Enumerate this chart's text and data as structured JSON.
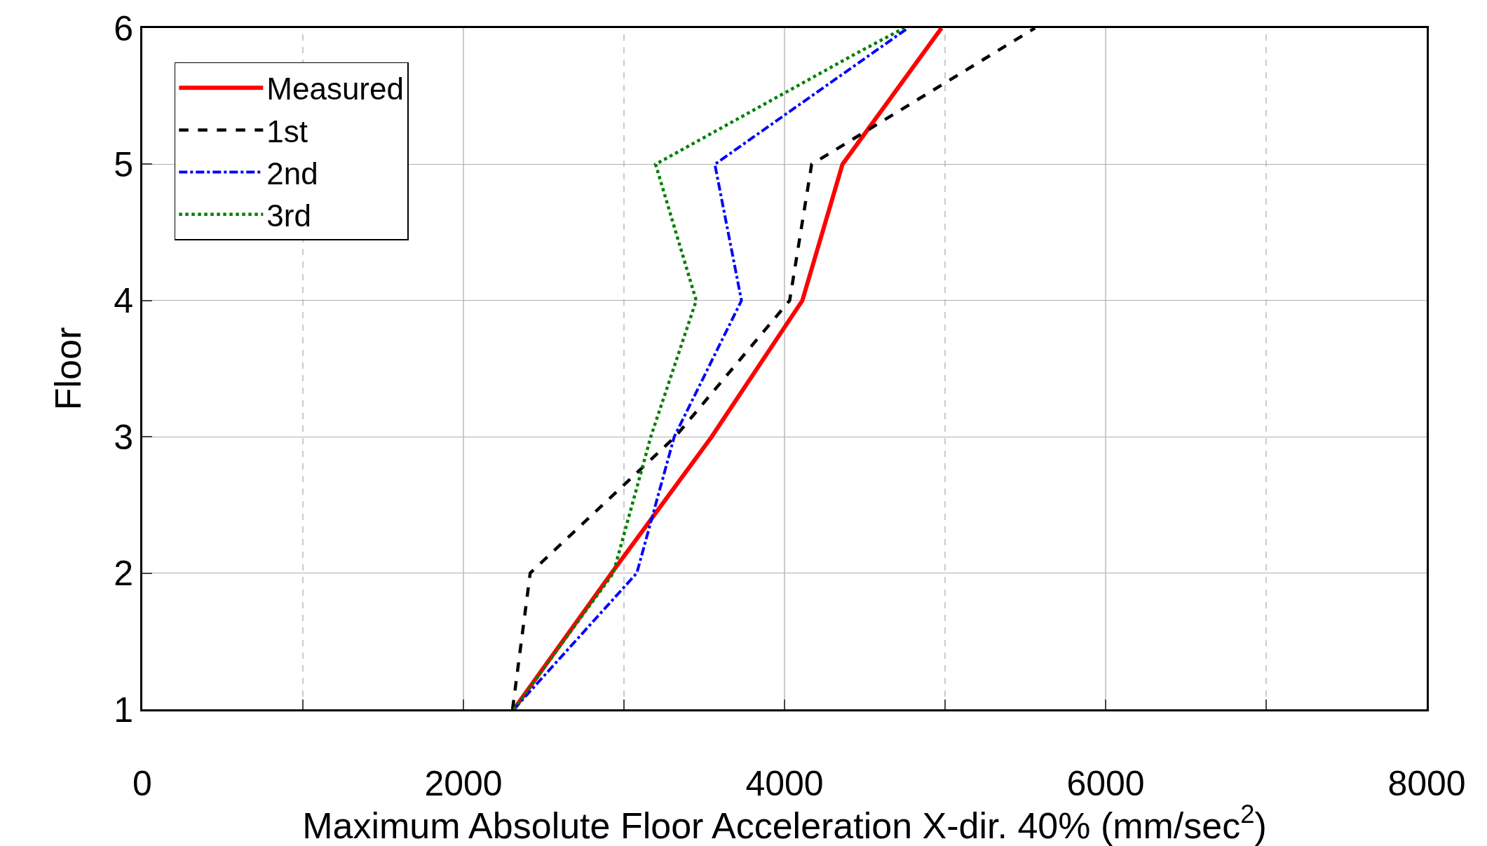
{
  "chart_data": {
    "type": "line",
    "xlabel": "Maximum Absolute Floor Acceleration X-dir. 40% (mm/sec$^{2}$)",
    "ylabel": "Floor",
    "xlim": [
      0,
      8000
    ],
    "xticks": [
      0,
      {
        "value": 1000,
        "label": null
      },
      2000,
      {
        "value": 3000,
        "label": null
      },
      4000,
      {
        "value": 5000,
        "label": null
      },
      6000,
      {
        "value": 7000,
        "label": null
      },
      8000
    ],
    "ylim": [
      1,
      6
    ],
    "yticks": [
      1,
      2,
      3,
      4,
      5,
      6
    ],
    "grid": true,
    "legend": "top left",
    "series": [
      {
        "name": "Measured",
        "color": "#ff0000",
        "line_style": "solid",
        "x": [
          2314,
          2923,
          3546,
          4111,
          4361,
          4978
        ],
        "values": [
          1,
          2,
          3,
          4,
          5,
          6
        ]
      },
      {
        "name": "1st",
        "color": "#000000",
        "line_style": "dashed",
        "x": [
          2306,
          2416,
          3319,
          4032,
          4169,
          5560
        ],
        "values": [
          1,
          2,
          3,
          4,
          5,
          6
        ]
      },
      {
        "name": "2nd",
        "color": "#0000ff",
        "line_style": "dashdot",
        "x": [
          2314,
          3080,
          3313,
          3732,
          3566,
          4769
        ],
        "values": [
          1,
          2,
          3,
          4,
          5,
          6
        ]
      },
      {
        "name": "3rd",
        "color": "#008000",
        "line_style": "dotted",
        "x": [
          2314,
          2934,
          3167,
          3450,
          3197,
          4425,
          4745
        ],
        "values": [
          1,
          2,
          3,
          4,
          5,
          5.8,
          6
        ]
      }
    ]
  }
}
